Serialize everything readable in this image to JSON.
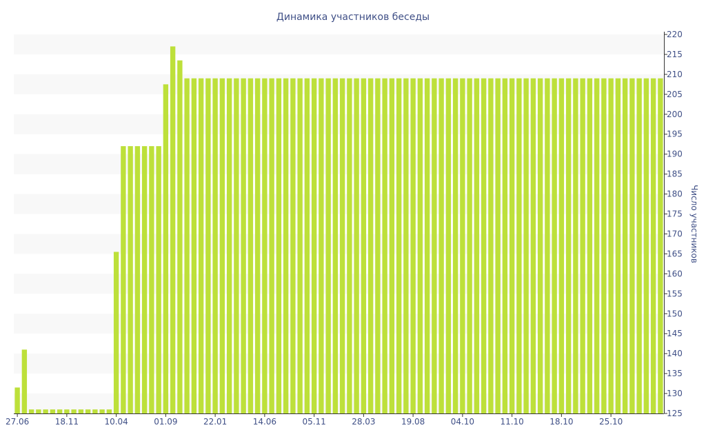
{
  "chart_data": {
    "type": "bar",
    "title": "Динамика участников беседы",
    "xlabel": "",
    "ylabel": "Число участников",
    "ylim": [
      125,
      220
    ],
    "yticks": [
      125,
      130,
      135,
      140,
      145,
      150,
      155,
      160,
      165,
      170,
      175,
      180,
      185,
      190,
      195,
      200,
      205,
      210,
      215,
      220
    ],
    "ytick_labels": [
      "125",
      "130",
      "135",
      "140",
      "145",
      "150",
      "155",
      "160",
      "165",
      "170",
      "175",
      "180",
      "185",
      "190",
      "195",
      "200",
      "205",
      "210",
      "215",
      "220"
    ],
    "y_axis_side": "right",
    "grid": "alternating horizontal bands",
    "legend": "none",
    "bar_color": "#bde03a",
    "band_color": "#f8f8f8",
    "text_color": "#3f4f86",
    "xtick_labels": [
      {
        "label": "27.06",
        "index": 0
      },
      {
        "label": "18.11",
        "index": 7
      },
      {
        "label": "10.04",
        "index": 14
      },
      {
        "label": "01.09",
        "index": 21
      },
      {
        "label": "22.01",
        "index": 28
      },
      {
        "label": "14.06",
        "index": 35
      },
      {
        "label": "05.11",
        "index": 42
      },
      {
        "label": "28.03",
        "index": 49
      },
      {
        "label": "19.08",
        "index": 56
      },
      {
        "label": "04.10",
        "index": 63
      },
      {
        "label": "11.10",
        "index": 70
      },
      {
        "label": "18.10",
        "index": 77
      },
      {
        "label": "25.10",
        "index": 84
      }
    ],
    "values": [
      131.5,
      141,
      126,
      126,
      126,
      126,
      126,
      126,
      126,
      126,
      126,
      126,
      126,
      126,
      165.5,
      192,
      192,
      192,
      192,
      192,
      192,
      207.5,
      217,
      213.5,
      209,
      209,
      209,
      209,
      209,
      209,
      209,
      209,
      209,
      209,
      209,
      209,
      209,
      209,
      209,
      209,
      209,
      209,
      209,
      209,
      209,
      209,
      209,
      209,
      209,
      209,
      209,
      209,
      209,
      209,
      209,
      209,
      209,
      209,
      209,
      209,
      209,
      209,
      209,
      209,
      209,
      209,
      209,
      209,
      209,
      209,
      209,
      209,
      209,
      209,
      209,
      209,
      209,
      209,
      209,
      209,
      209,
      209,
      209,
      209,
      209,
      209,
      209,
      209,
      209,
      209,
      209,
      209
    ]
  }
}
